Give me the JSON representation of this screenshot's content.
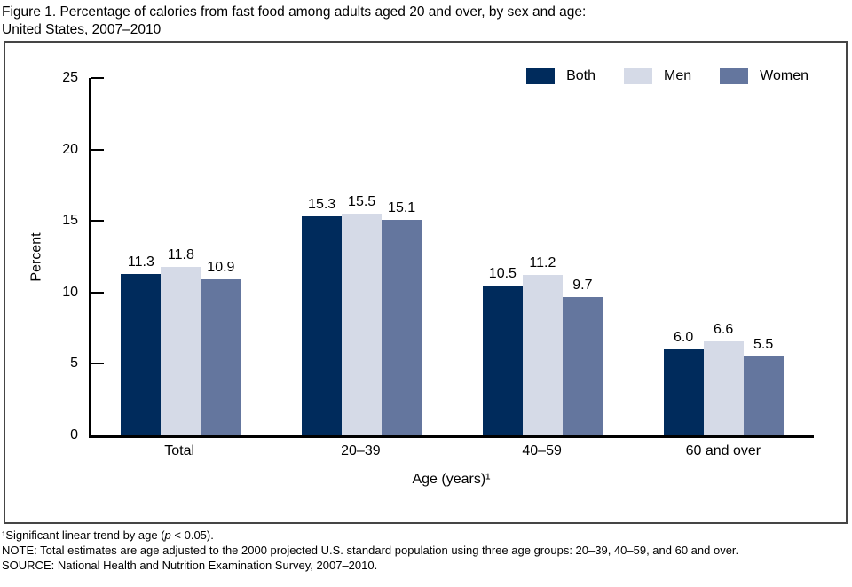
{
  "title": {
    "line1": "Figure 1. Percentage of calories from fast food among adults aged 20 and over, by sex and age:",
    "line2": "United States, 2007–2010"
  },
  "legend": [
    {
      "label": "Both",
      "color": "#002b5c"
    },
    {
      "label": "Men",
      "color": "#d5dae7"
    },
    {
      "label": "Women",
      "color": "#64769e"
    }
  ],
  "chart_data": {
    "type": "bar",
    "title": "Percentage of calories from fast food among adults aged 20 and over, by sex and age: United States, 2007–2010",
    "categories": [
      "Total",
      "20–39",
      "40–59",
      "60 and over"
    ],
    "series": [
      {
        "name": "Both",
        "color": "#002b5c",
        "values": [
          11.3,
          15.3,
          10.5,
          6.0
        ]
      },
      {
        "name": "Men",
        "color": "#d5dae7",
        "values": [
          11.8,
          15.5,
          11.2,
          6.6
        ]
      },
      {
        "name": "Women",
        "color": "#64769e",
        "values": [
          10.9,
          15.1,
          9.7,
          5.5
        ]
      }
    ],
    "xlabel": "Age (years)¹",
    "ylabel": "Percent",
    "ylim": [
      0,
      25
    ],
    "yticks": [
      0,
      5,
      10,
      15,
      20,
      25
    ],
    "grid": false,
    "value_labels": true,
    "legend_position": "top-right"
  },
  "footnotes": {
    "line1_pre": "¹Significant linear trend by age (",
    "line1_italic": "p",
    "line1_post": " < 0.05).",
    "line2": "NOTE: Total estimates are age adjusted to the 2000 projected U.S. standard population using three age groups: 20–39, 40–59, and 60 and over.",
    "line3": "SOURCE: National Health and Nutrition Examination Survey, 2007–2010."
  }
}
